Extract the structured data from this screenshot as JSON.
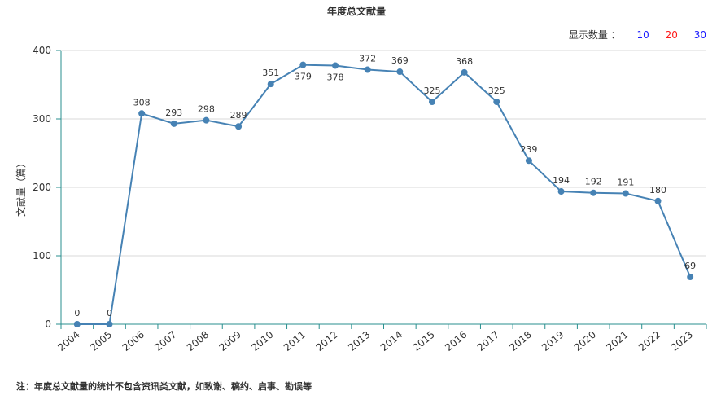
{
  "display_count": {
    "label": "显示数量 ：",
    "options": [
      {
        "label": "10",
        "color": "#1a1aff"
      },
      {
        "label": "20",
        "color": "#ff1a1a"
      },
      {
        "label": "30",
        "color": "#1a1aff"
      }
    ]
  },
  "note": "注：年度总文献量的统计不包含资讯类文献，如致谢、稿约、启事、勘误等",
  "chart_data": {
    "type": "line",
    "title": "年度总文献量",
    "ylabel": "文献量（篇）",
    "xlabel": "",
    "ylim": [
      0,
      400
    ],
    "yticks": [
      0,
      100,
      200,
      300,
      400
    ],
    "grid": true,
    "line_color": "#4682b4",
    "categories": [
      "2004",
      "2005",
      "2006",
      "2007",
      "2008",
      "2009",
      "2010",
      "2011",
      "2012",
      "2013",
      "2014",
      "2015",
      "2016",
      "2017",
      "2018",
      "2019",
      "2020",
      "2021",
      "2022",
      "2023"
    ],
    "series": [
      {
        "values": [
          0,
          0,
          308,
          293,
          298,
          289,
          351,
          379,
          378,
          372,
          369,
          325,
          368,
          325,
          239,
          194,
          192,
          191,
          180,
          69
        ]
      }
    ],
    "label_below": [
      "2011",
      "2012"
    ]
  }
}
